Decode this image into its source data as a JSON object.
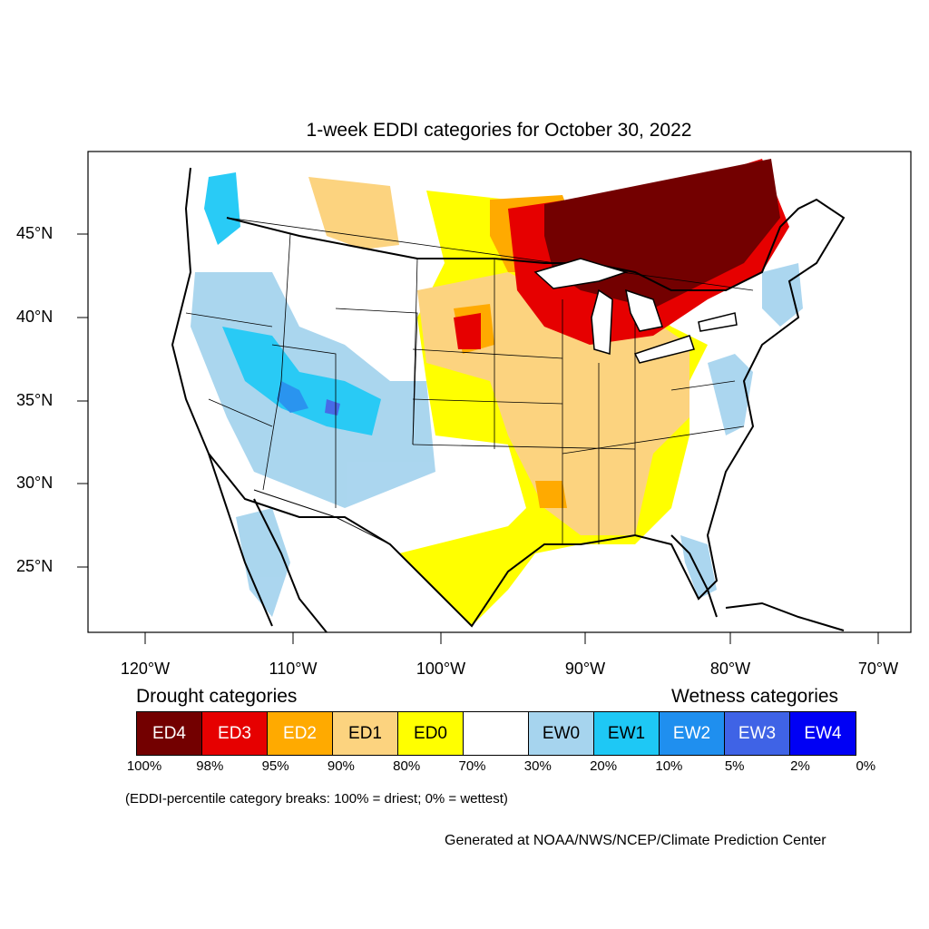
{
  "title": "1-week EDDI categories for October 30, 2022",
  "lat_labels": [
    "45°N",
    "40°N",
    "35°N",
    "30°N",
    "25°N"
  ],
  "lon_labels": [
    "120°W",
    "110°W",
    "100°W",
    "90°W",
    "80°W",
    "70°W"
  ],
  "legend": {
    "drought_heading": "Drought categories",
    "wetness_heading": "Wetness categories",
    "categories": [
      {
        "label": "ED4",
        "color": "#730000",
        "text_color": "#ffffff"
      },
      {
        "label": "ED3",
        "color": "#e60000",
        "text_color": "#ffffff"
      },
      {
        "label": "ED2",
        "color": "#ffaa00",
        "text_color": "#ffffff"
      },
      {
        "label": "ED1",
        "color": "#fcd37f",
        "text_color": "#000000"
      },
      {
        "label": "ED0",
        "color": "#ffff00",
        "text_color": "#000000"
      },
      {
        "label": "",
        "color": "#ffffff",
        "text_color": "#000000"
      },
      {
        "label": "EW0",
        "color": "#a6d4ee",
        "text_color": "#000000"
      },
      {
        "label": "EW1",
        "color": "#1ec8f5",
        "text_color": "#000000"
      },
      {
        "label": "EW2",
        "color": "#1f8fef",
        "text_color": "#ffffff"
      },
      {
        "label": "EW3",
        "color": "#3f63e6",
        "text_color": "#ffffff"
      },
      {
        "label": "EW4",
        "color": "#0000f5",
        "text_color": "#ffffff"
      }
    ],
    "breaks": [
      "100%",
      "98%",
      "95%",
      "90%",
      "80%",
      "70%",
      "30%",
      "20%",
      "10%",
      "5%",
      "2%",
      "0%"
    ]
  },
  "note": "(EDDI-percentile category breaks: 100% = driest; 0% = wettest)",
  "credit": "Generated at NOAA/NWS/NCEP/Climate Prediction Center"
}
